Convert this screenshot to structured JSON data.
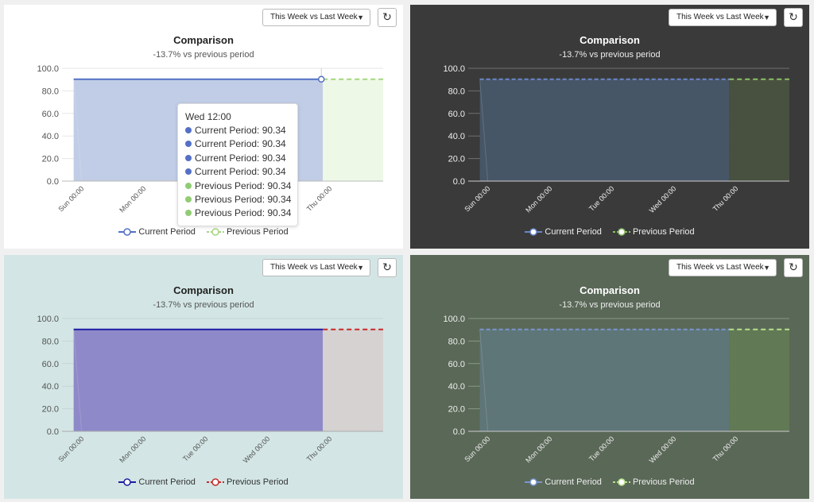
{
  "panels": [
    {
      "title": "Comparison",
      "subtitle": "-13.7% vs previous period",
      "select_value": "This Week vs Last Week",
      "refresh_glyph": "↻",
      "theme": {
        "tick_color": "#555555",
        "axis_color": "#bbbbbb",
        "grid_color": "#e6e6e6",
        "cur_fill": "#c1cde6",
        "cur_line": "#5470c6",
        "cur_dash": false,
        "cur_marker_fill": "#ffffff",
        "prev_fill": "#eef8e7",
        "prev_line": "#a5d67e",
        "prev_marker_fill": "#ffffff"
      }
    },
    {
      "title": "Comparison",
      "subtitle": "-13.7% vs previous period",
      "select_value": "This Week vs Last Week",
      "refresh_glyph": "↻",
      "theme": {
        "tick_color": "#eeeeee",
        "axis_color": "#cccccc",
        "grid_color": "#6f6f6f",
        "cur_fill": "#475667",
        "cur_line": "#6a86c9",
        "cur_dash": true,
        "cur_marker_fill": "#ffffff",
        "prev_fill": "#485140",
        "prev_line": "#8cbf66",
        "prev_marker_fill": "#ffffff"
      }
    },
    {
      "title": "Comparison",
      "subtitle": "-13.7% vs previous period",
      "select_value": "This Week vs Last Week",
      "refresh_glyph": "↻",
      "theme": {
        "tick_color": "#555555",
        "axis_color": "#aaaaaa",
        "grid_color": "#c3d6d5",
        "cur_fill": "#8e89c8",
        "cur_line": "#1d1da3",
        "cur_dash": false,
        "cur_marker_fill": "#ffffff",
        "prev_fill": "#d6d2d2",
        "prev_line": "#c82a2a",
        "prev_marker_fill": "#ffffff"
      }
    },
    {
      "title": "Comparison",
      "subtitle": "-13.7% vs previous period",
      "select_value": "This Week vs Last Week",
      "refresh_glyph": "↻",
      "theme": {
        "tick_color": "#eeeeee",
        "axis_color": "#cccccc",
        "grid_color": "#8a9786",
        "cur_fill": "#5f7679",
        "cur_line": "#7a95cf",
        "cur_dash": true,
        "cur_marker_fill": "#ffffff",
        "prev_fill": "#617954",
        "prev_line": "#b7e08c",
        "prev_marker_fill": "#ffffff"
      }
    }
  ],
  "chart_data": {
    "type": "area",
    "x_ticks": [
      "Sun 00:00",
      "Mon 00:00",
      "Tue 00:00",
      "Wed 00:00",
      "Thu 00:00"
    ],
    "y_ticks": [
      "0.0",
      "20.0",
      "40.0",
      "60.0",
      "80.0",
      "100.0"
    ],
    "ylim": [
      0,
      100
    ],
    "series": [
      {
        "name": "Current Period",
        "value": 90.34,
        "from_tick_fraction": -0.12,
        "to_tick_fraction": 3.9
      },
      {
        "name": "Previous Period",
        "value": 90.34,
        "from_tick_fraction": 3.9,
        "to_tick_fraction": 5.0
      }
    ]
  },
  "tooltip": {
    "title": "Wed 12:00",
    "rows": [
      {
        "label": "Current Period: 90.34",
        "color": "#5470c6"
      },
      {
        "label": "Current Period: 90.34",
        "color": "#5470c6"
      },
      {
        "label": "Current Period: 90.34",
        "color": "#5470c6"
      },
      {
        "label": "Current Period: 90.34",
        "color": "#5470c6"
      },
      {
        "label": "Previous Period: 90.34",
        "color": "#91cc75"
      },
      {
        "label": "Previous Period: 90.34",
        "color": "#91cc75"
      },
      {
        "label": "Previous Period: 90.34",
        "color": "#91cc75"
      }
    ]
  }
}
